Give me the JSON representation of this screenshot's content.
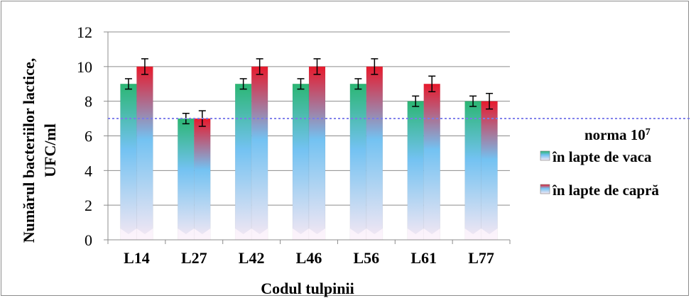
{
  "chart_data": {
    "type": "bar",
    "categories": [
      "L14",
      "L27",
      "L42",
      "L46",
      "L56",
      "L61",
      "L77"
    ],
    "series": [
      {
        "name": "în lapte de vaca",
        "values": [
          9,
          7,
          9,
          9,
          9,
          8,
          8
        ],
        "error": [
          0.3,
          0.3,
          0.3,
          0.3,
          0.3,
          0.3,
          0.3
        ],
        "color_top": "#2bb673",
        "color_mid": "#73c2f2",
        "color_bottom": "#f6e8f3"
      },
      {
        "name": "în lapte de capră",
        "values": [
          10,
          7,
          10,
          10,
          10,
          9,
          8
        ],
        "error": [
          0.45,
          0.45,
          0.45,
          0.45,
          0.45,
          0.45,
          0.45
        ],
        "color_top": "#e8192c",
        "color_mid": "#73c2f2",
        "color_bottom": "#f6e8f3"
      }
    ],
    "reference_line": {
      "value": 7,
      "label_prefix": "norma 10",
      "label_exponent": "7",
      "color": "#7a7aea"
    },
    "xlabel": "Codul tulpinii",
    "ylabel_line1": "Numărul bacteriilor lactice,",
    "ylabel_line2": "UFC/ml",
    "ylim": [
      0,
      12
    ],
    "yticks": [
      "0",
      "2",
      "4",
      "6",
      "8",
      "10",
      "12"
    ],
    "grid": true,
    "legend_position": "right"
  }
}
